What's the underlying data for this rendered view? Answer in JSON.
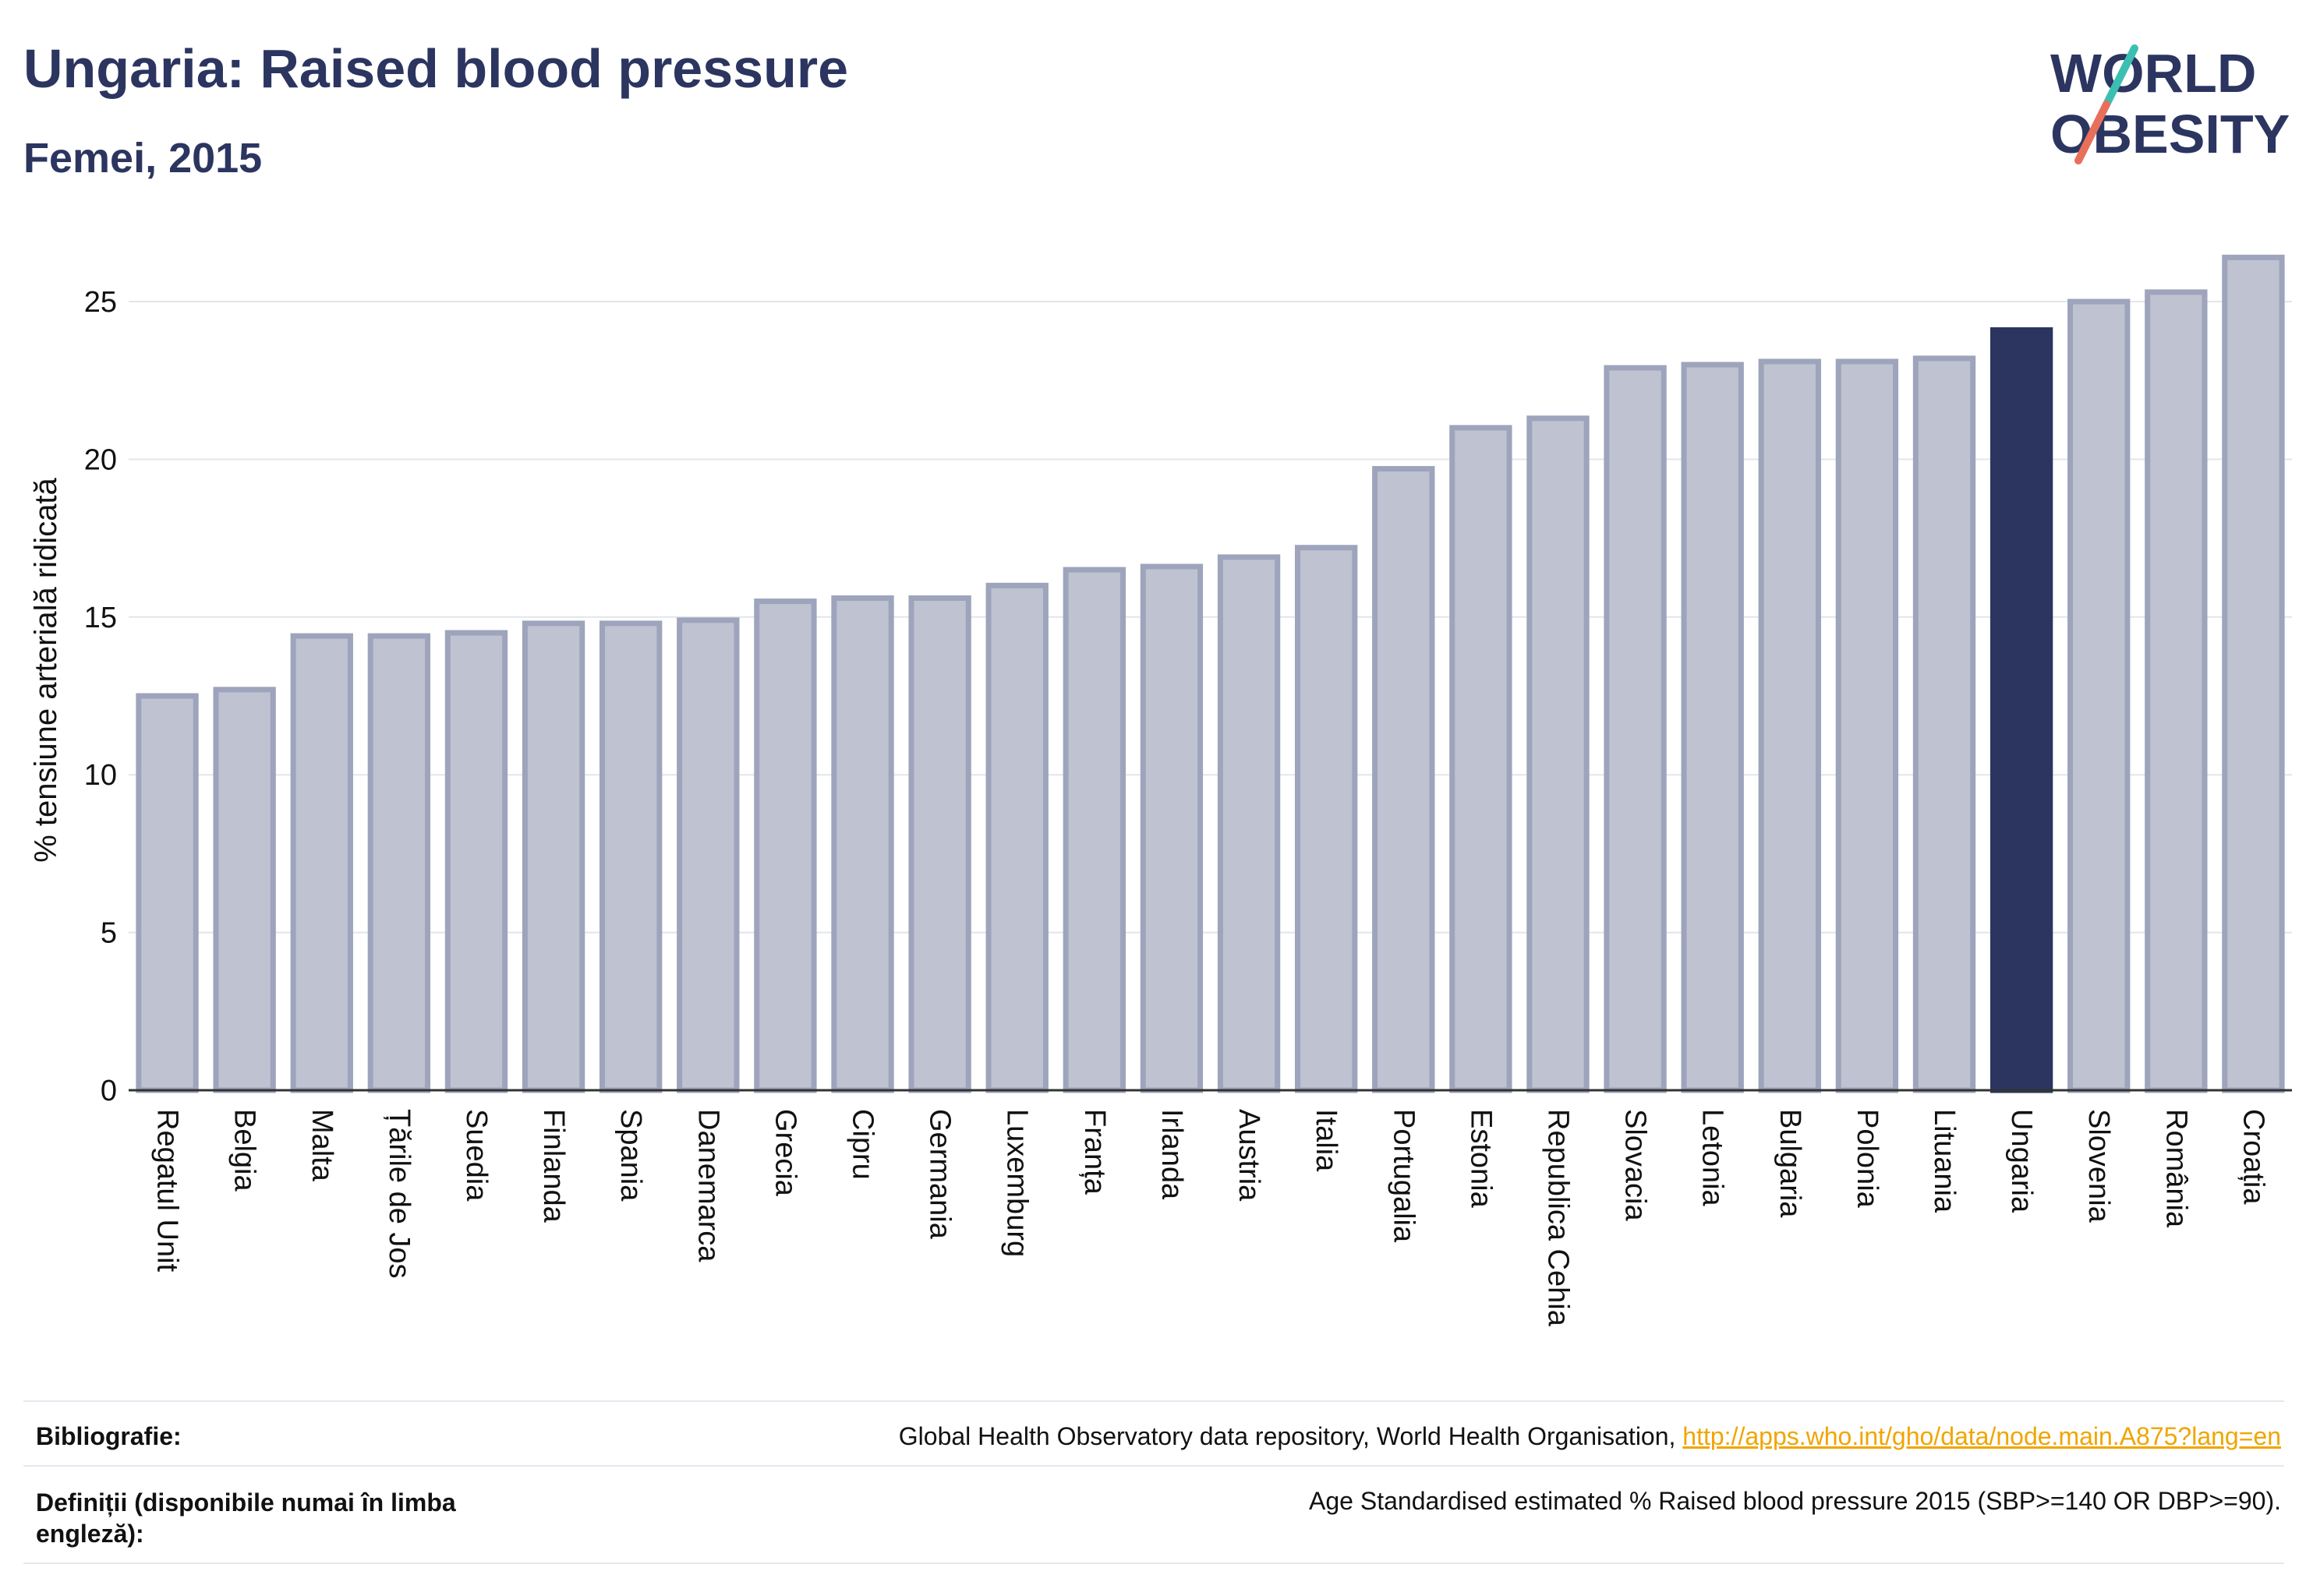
{
  "header": {
    "title": "Ungaria: Raised blood pressure",
    "subtitle": "Femei, 2015"
  },
  "logo": {
    "line1": "WORLD",
    "line2": "OBESITY",
    "accent_teal": "#3bbfb3",
    "accent_coral": "#e8705b"
  },
  "colors": {
    "bar_default": "#bfc3d1",
    "bar_border": "#9da4bb",
    "bar_highlight": "#2b3560",
    "text_dark": "#2b3560"
  },
  "chart_data": {
    "type": "bar",
    "ylabel": "% tensiune arterială ridicată",
    "ylim": [
      0,
      27.5
    ],
    "yticks": [
      0,
      5,
      10,
      15,
      20,
      25
    ],
    "grid": true,
    "highlight": "Ungaria",
    "categories": [
      "Regatul Unit",
      "Belgia",
      "Malta",
      "Țările de Jos",
      "Suedia",
      "Finlanda",
      "Spania",
      "Danemarca",
      "Grecia",
      "Cipru",
      "Germania",
      "Luxemburg",
      "Franța",
      "Irlanda",
      "Austria",
      "Italia",
      "Portugalia",
      "Estonia",
      "Republica Cehia",
      "Slovacia",
      "Letonia",
      "Bulgaria",
      "Polonia",
      "Lituania",
      "Ungaria",
      "Slovenia",
      "România",
      "Croația"
    ],
    "values": [
      12.5,
      12.7,
      14.4,
      14.4,
      14.5,
      14.8,
      14.8,
      14.9,
      15.5,
      15.6,
      15.6,
      16.0,
      16.5,
      16.6,
      16.9,
      17.2,
      19.7,
      21.0,
      21.3,
      22.9,
      23.0,
      23.1,
      23.1,
      23.2,
      24.1,
      25.0,
      25.3,
      26.4
    ]
  },
  "footer": {
    "bib_label": "Bibliografie:",
    "bib_text": "Global Health Observatory data repository, World Health Organisation, ",
    "bib_link": "http://apps.who.int/gho/data/node.main.A875?lang=en",
    "def_label": "Definiții (disponibile numai în limba engleză):",
    "def_text": "Age Standardised estimated % Raised blood pressure 2015 (SBP>=140 OR DBP>=90)."
  }
}
